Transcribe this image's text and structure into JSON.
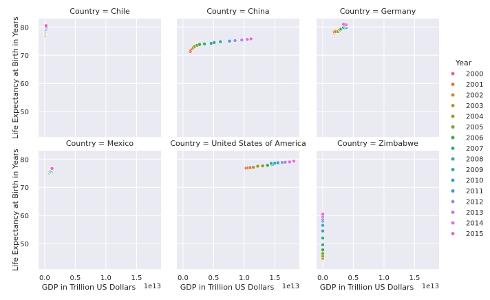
{
  "chart_data": {
    "type": "scatter",
    "facet_title_prefix": "Country = ",
    "xlabel": "GDP in Trillion US Dollars",
    "ylabel": "Life Expectancy at Birth in Years",
    "x_offset_text": "1e13",
    "x_ticks": [
      0.0,
      0.5,
      1.0,
      1.5
    ],
    "x_tick_labels": [
      "0.0",
      "0.5",
      "1.0",
      "1.5"
    ],
    "x_range": [
      -0.1,
      1.9
    ],
    "y_ticks": [
      50,
      60,
      70,
      80
    ],
    "y_tick_labels": [
      "50",
      "60",
      "70",
      "80"
    ],
    "y_range": [
      41,
      83
    ],
    "grid": true,
    "legend_title": "Year",
    "legend_position": "right",
    "series": [
      {
        "name": "2000",
        "color": "#f0607d"
      },
      {
        "name": "2001",
        "color": "#e8743e"
      },
      {
        "name": "2002",
        "color": "#d0852e"
      },
      {
        "name": "2003",
        "color": "#b49130"
      },
      {
        "name": "2004",
        "color": "#9b9a30"
      },
      {
        "name": "2005",
        "color": "#7ba232"
      },
      {
        "name": "2006",
        "color": "#3aab49"
      },
      {
        "name": "2007",
        "color": "#33ac7c"
      },
      {
        "name": "2008",
        "color": "#34aa97"
      },
      {
        "name": "2009",
        "color": "#36a7aa"
      },
      {
        "name": "2010",
        "color": "#39a4bb"
      },
      {
        "name": "2011",
        "color": "#3b9fd1"
      },
      {
        "name": "2012",
        "color": "#8b92e5"
      },
      {
        "name": "2013",
        "color": "#b483e8"
      },
      {
        "name": "2014",
        "color": "#d874dd"
      },
      {
        "name": "2015",
        "color": "#ea6bc4"
      }
    ],
    "panels": [
      {
        "country": "Chile",
        "points": [
          {
            "year": "2000",
            "x": 0.008,
            "y": 77.0
          },
          {
            "year": "2001",
            "x": 0.007,
            "y": 77.3
          },
          {
            "year": "2002",
            "x": 0.007,
            "y": 77.5
          },
          {
            "year": "2003",
            "x": 0.008,
            "y": 77.7
          },
          {
            "year": "2004",
            "x": 0.01,
            "y": 77.9
          },
          {
            "year": "2005",
            "x": 0.012,
            "y": 78.0
          },
          {
            "year": "2006",
            "x": 0.015,
            "y": 78.2
          },
          {
            "year": "2007",
            "x": 0.017,
            "y": 78.4
          },
          {
            "year": "2008",
            "x": 0.018,
            "y": 78.6
          },
          {
            "year": "2009",
            "x": 0.017,
            "y": 78.8
          },
          {
            "year": "2010",
            "x": 0.022,
            "y": 79.0
          },
          {
            "year": "2011",
            "x": 0.025,
            "y": 79.2
          },
          {
            "year": "2012",
            "x": 0.027,
            "y": 79.5
          },
          {
            "year": "2013",
            "x": 0.028,
            "y": 79.8
          },
          {
            "year": "2014",
            "x": 0.026,
            "y": 80.1
          },
          {
            "year": "2015",
            "x": 0.024,
            "y": 80.5
          }
        ]
      },
      {
        "country": "China",
        "points": [
          {
            "year": "2000",
            "x": 0.12,
            "y": 71.3
          },
          {
            "year": "2001",
            "x": 0.13,
            "y": 71.8
          },
          {
            "year": "2002",
            "x": 0.15,
            "y": 72.3
          },
          {
            "year": "2003",
            "x": 0.17,
            "y": 72.7
          },
          {
            "year": "2004",
            "x": 0.19,
            "y": 73.1
          },
          {
            "year": "2005",
            "x": 0.23,
            "y": 73.5
          },
          {
            "year": "2006",
            "x": 0.27,
            "y": 73.8
          },
          {
            "year": "2007",
            "x": 0.35,
            "y": 74.0
          },
          {
            "year": "2008",
            "x": 0.46,
            "y": 74.2
          },
          {
            "year": "2009",
            "x": 0.51,
            "y": 74.5
          },
          {
            "year": "2010",
            "x": 0.61,
            "y": 74.8
          },
          {
            "year": "2011",
            "x": 0.76,
            "y": 75.0
          },
          {
            "year": "2012",
            "x": 0.85,
            "y": 75.2
          },
          {
            "year": "2013",
            "x": 0.96,
            "y": 75.4
          },
          {
            "year": "2014",
            "x": 1.05,
            "y": 75.6
          },
          {
            "year": "2015",
            "x": 1.11,
            "y": 75.8
          }
        ]
      },
      {
        "country": "Germany",
        "points": [
          {
            "year": "2000",
            "x": 0.19,
            "y": 78.0
          },
          {
            "year": "2001",
            "x": 0.19,
            "y": 78.3
          },
          {
            "year": "2002",
            "x": 0.21,
            "y": 78.4
          },
          {
            "year": "2003",
            "x": 0.25,
            "y": 78.4
          },
          {
            "year": "2004",
            "x": 0.28,
            "y": 78.8
          },
          {
            "year": "2005",
            "x": 0.28,
            "y": 79.1
          },
          {
            "year": "2006",
            "x": 0.3,
            "y": 79.3
          },
          {
            "year": "2007",
            "x": 0.34,
            "y": 79.5
          },
          {
            "year": "2008",
            "x": 0.38,
            "y": 79.8
          },
          {
            "year": "2009",
            "x": 0.34,
            "y": 79.8
          },
          {
            "year": "2010",
            "x": 0.34,
            "y": 79.9
          },
          {
            "year": "2011",
            "x": 0.37,
            "y": 80.4
          },
          {
            "year": "2012",
            "x": 0.35,
            "y": 80.6
          },
          {
            "year": "2013",
            "x": 0.37,
            "y": 80.6
          },
          {
            "year": "2014",
            "x": 0.38,
            "y": 80.8
          },
          {
            "year": "2015",
            "x": 0.34,
            "y": 81.0
          }
        ]
      },
      {
        "country": "Mexico",
        "points": [
          {
            "year": "2000",
            "x": 0.07,
            "y": 74.8
          },
          {
            "year": "2001",
            "x": 0.07,
            "y": 75.0
          },
          {
            "year": "2002",
            "x": 0.07,
            "y": 75.0
          },
          {
            "year": "2003",
            "x": 0.07,
            "y": 75.0
          },
          {
            "year": "2004",
            "x": 0.08,
            "y": 75.0
          },
          {
            "year": "2005",
            "x": 0.09,
            "y": 75.2
          },
          {
            "year": "2006",
            "x": 0.1,
            "y": 75.2
          },
          {
            "year": "2007",
            "x": 0.1,
            "y": 75.3
          },
          {
            "year": "2008",
            "x": 0.11,
            "y": 75.5
          },
          {
            "year": "2009",
            "x": 0.09,
            "y": 75.6
          },
          {
            "year": "2010",
            "x": 0.1,
            "y": 75.8
          },
          {
            "year": "2011",
            "x": 0.11,
            "y": 76.0
          },
          {
            "year": "2012",
            "x": 0.12,
            "y": 76.3
          },
          {
            "year": "2013",
            "x": 0.12,
            "y": 76.5
          },
          {
            "year": "2014",
            "x": 0.13,
            "y": 76.6
          },
          {
            "year": "2015",
            "x": 0.12,
            "y": 76.7
          }
        ]
      },
      {
        "country": "United States of America",
        "points": [
          {
            "year": "2000",
            "x": 1.03,
            "y": 76.8
          },
          {
            "year": "2001",
            "x": 1.06,
            "y": 76.9
          },
          {
            "year": "2002",
            "x": 1.1,
            "y": 77.0
          },
          {
            "year": "2003",
            "x": 1.15,
            "y": 77.1
          },
          {
            "year": "2004",
            "x": 1.22,
            "y": 77.5
          },
          {
            "year": "2005",
            "x": 1.3,
            "y": 77.6
          },
          {
            "year": "2006",
            "x": 1.38,
            "y": 77.8
          },
          {
            "year": "2007",
            "x": 1.45,
            "y": 78.1
          },
          {
            "year": "2008",
            "x": 1.47,
            "y": 78.2
          },
          {
            "year": "2009",
            "x": 1.44,
            "y": 78.5
          },
          {
            "year": "2010",
            "x": 1.5,
            "y": 78.6
          },
          {
            "year": "2011",
            "x": 1.55,
            "y": 78.7
          },
          {
            "year": "2012",
            "x": 1.62,
            "y": 78.8
          },
          {
            "year": "2013",
            "x": 1.67,
            "y": 78.9
          },
          {
            "year": "2014",
            "x": 1.74,
            "y": 79.0
          },
          {
            "year": "2015",
            "x": 1.81,
            "y": 79.3
          }
        ]
      },
      {
        "country": "Zimbabwe",
        "points": [
          {
            "year": "2000",
            "x": 0.001,
            "y": 45.0
          },
          {
            "year": "2001",
            "x": 0.001,
            "y": 44.5
          },
          {
            "year": "2002",
            "x": 0.001,
            "y": 44.7
          },
          {
            "year": "2003",
            "x": 0.001,
            "y": 45.0
          },
          {
            "year": "2004",
            "x": 0.001,
            "y": 45.6
          },
          {
            "year": "2005",
            "x": 0.001,
            "y": 46.5
          },
          {
            "year": "2006",
            "x": 0.001,
            "y": 47.8
          },
          {
            "year": "2007",
            "x": 0.001,
            "y": 49.6
          },
          {
            "year": "2008",
            "x": 0.001,
            "y": 52.0
          },
          {
            "year": "2009",
            "x": 0.001,
            "y": 54.5
          },
          {
            "year": "2010",
            "x": 0.001,
            "y": 56.5
          },
          {
            "year": "2011",
            "x": 0.001,
            "y": 58.0
          },
          {
            "year": "2012",
            "x": 0.001,
            "y": 58.6
          },
          {
            "year": "2013",
            "x": 0.001,
            "y": 59.4
          },
          {
            "year": "2014",
            "x": 0.001,
            "y": 60.0
          },
          {
            "year": "2015",
            "x": 0.001,
            "y": 60.5
          }
        ]
      }
    ]
  }
}
